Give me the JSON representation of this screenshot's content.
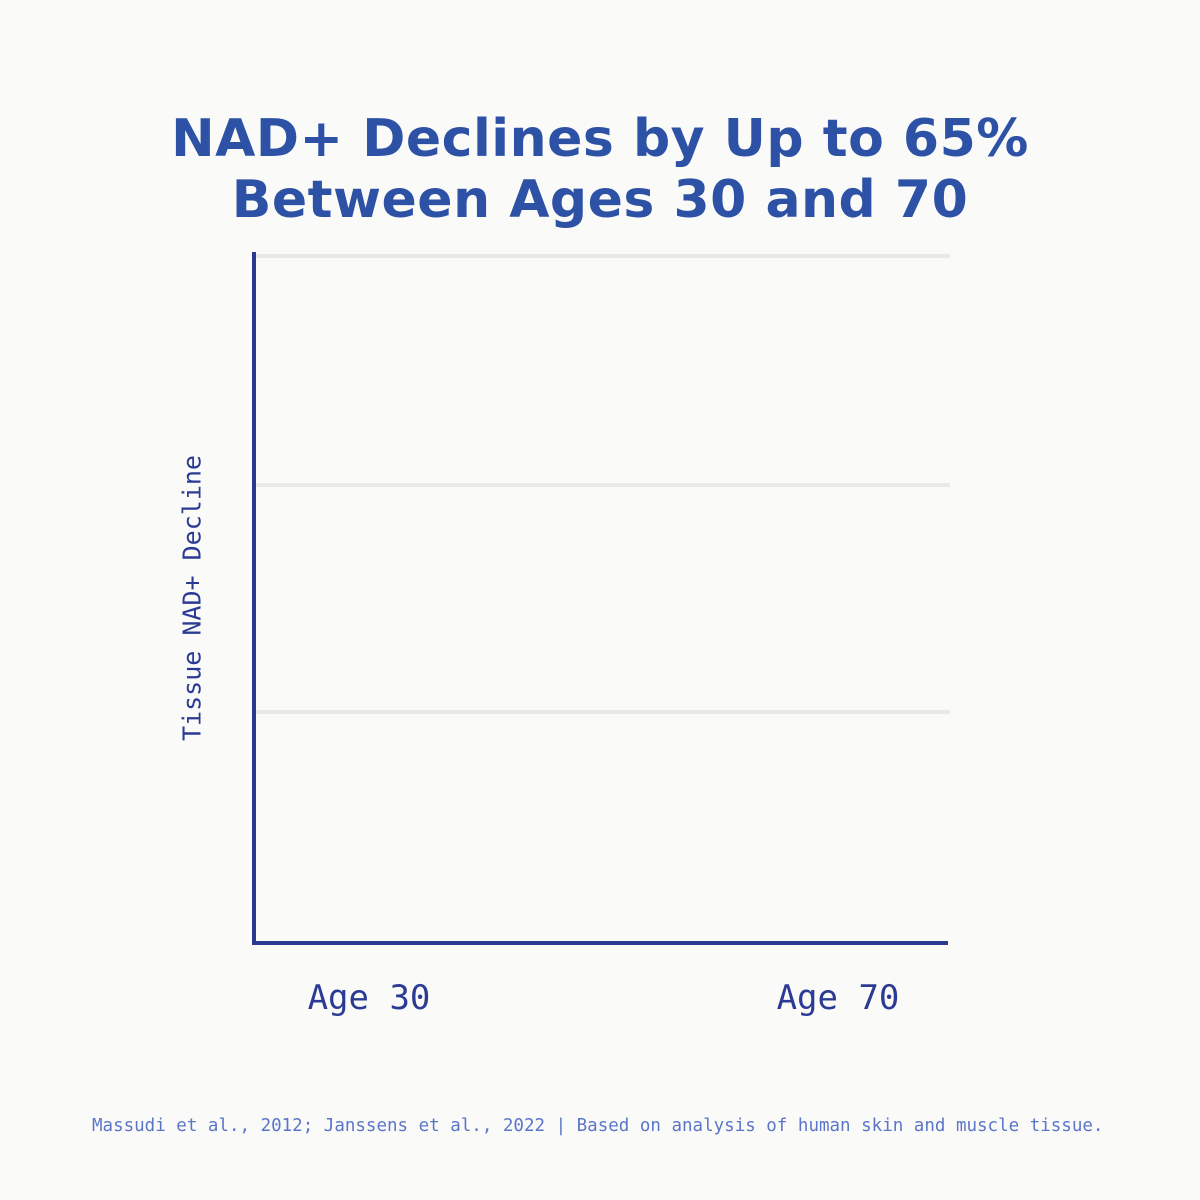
{
  "header": {
    "title_line1": "NAD+ Declines by Up to 65%",
    "title_line2": "Between Ages 30 and 70"
  },
  "chart": {
    "y_axis_label": "Tissue NAD+ Decline",
    "x_ticks": [
      "Age 30",
      "Age 70"
    ]
  },
  "footer": {
    "citation": "Massudi et al., 2012; Janssens et al., 2022 | Based on analysis of human skin and muscle tissue."
  },
  "colors": {
    "background": "#fafaf9",
    "title_blue": "#2d52a5",
    "axis_navy": "#2b3a8e",
    "tick_navy": "#2b3b94",
    "footer_blue": "#5b76c8",
    "gridline_gray": "#e9e9e7"
  },
  "chart_data": {
    "type": "line",
    "title": "NAD+ Declines by Up to 65% Between Ages 30 and 70",
    "categories": [
      "Age 30",
      "Age 70"
    ],
    "series": [],
    "xlabel": "",
    "ylabel": "Tissue NAD+ Decline",
    "y_tick_labels": [],
    "grid": "3 horizontal gridlines (no y-axis tick values shown)",
    "legend": "none",
    "plot_state": "plot area empty - no data series rendered in this frame",
    "source": "Massudi et al., 2012; Janssens et al., 2022 | Based on analysis of human skin and muscle tissue."
  }
}
